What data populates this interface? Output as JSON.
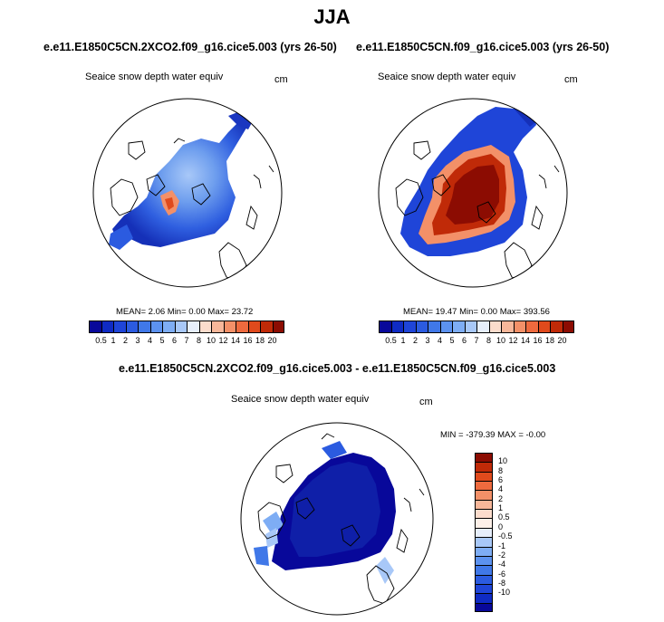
{
  "figure": {
    "title": "JJA"
  },
  "panels": [
    {
      "case": "e.e11.E1850C5CN.2XCO2.f09_g16.cice5.003 (yrs 26-50)",
      "variable": "Seaice snow depth water equiv",
      "units": "cm",
      "mean_label": "MEAN=",
      "mean": "2.06",
      "min_label": "Min=",
      "min": "0.00",
      "max_label": "Max=",
      "max": "23.72",
      "intensity": "low"
    },
    {
      "case": "e.e11.E1850C5CN.f09_g16.cice5.003 (yrs 26-50)",
      "variable": "Seaice snow depth water equiv",
      "units": "cm",
      "mean_label": "MEAN=",
      "mean": "19.47",
      "min_label": "Min=",
      "min": "0.00",
      "max_label": "Max=",
      "max": "393.56",
      "intensity": "high"
    }
  ],
  "difference_panel": {
    "title": "e.e11.E1850C5CN.2XCO2.f09_g16.cice5.003 - e.e11.E1850C5CN.f09_g16.cice5.003",
    "variable": "Seaice snow depth water equiv",
    "units": "cm",
    "minmax": "MIN = -379.39 MAX =  -0.00"
  },
  "colorbar_horizontal": {
    "ticks": [
      "0.5",
      "1",
      "2",
      "3",
      "4",
      "5",
      "6",
      "7",
      "8",
      "10",
      "12",
      "14",
      "16",
      "18",
      "20"
    ],
    "colors": [
      "#08089a",
      "#0f2bc4",
      "#1f45d8",
      "#2b5be0",
      "#4078e8",
      "#5c92ef",
      "#7eadf4",
      "#a8c8f8",
      "#e6eefb",
      "#fbdccc",
      "#f7b79a",
      "#f39068",
      "#ee6a3e",
      "#e04a1c",
      "#c02a08",
      "#8c0c02"
    ]
  },
  "colorbar_vertical": {
    "ticks": [
      "10",
      "8",
      "6",
      "4",
      "2",
      "1",
      "0.5",
      "0",
      "-0.5",
      "-1",
      "-2",
      "-4",
      "-6",
      "-8",
      "-10"
    ],
    "colors": [
      "#8c0c02",
      "#c02a08",
      "#e04a1c",
      "#ee6a3e",
      "#f39068",
      "#f7b79a",
      "#fbdccc",
      "#fdf0e8",
      "#e6eefb",
      "#a8c8f8",
      "#7eadf4",
      "#5c92ef",
      "#4078e8",
      "#2b5be0",
      "#1f45d8",
      "#0f2bc4",
      "#08089a"
    ]
  }
}
